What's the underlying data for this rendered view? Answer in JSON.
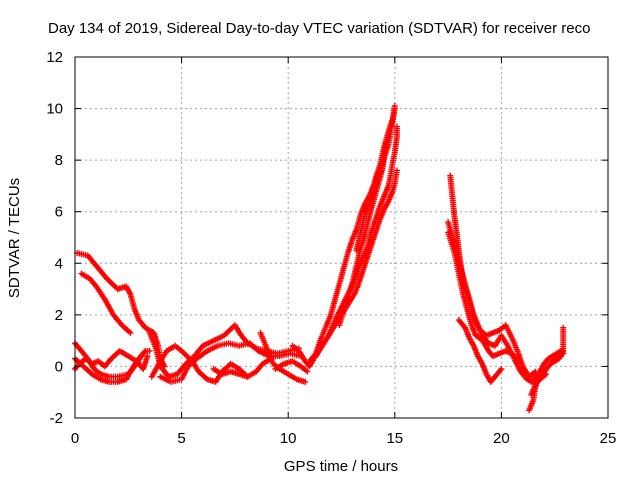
{
  "chart_data": {
    "type": "scatter",
    "title": "Day 134 of 2019, Sidereal Day-to-day VTEC variation (SDTVAR) for receiver reco",
    "xlabel": "GPS time / hours",
    "ylabel": "SDTVAR / TECUs",
    "xlim": [
      0,
      25
    ],
    "ylim": [
      -2,
      12
    ],
    "xticks": [
      0,
      5,
      10,
      15,
      20,
      25
    ],
    "yticks": [
      -2,
      0,
      2,
      4,
      6,
      8,
      10,
      12
    ],
    "grid": true,
    "marker": "+",
    "series_color": "#ff0000",
    "tracks": [
      [
        [
          0.1,
          4.4
        ],
        [
          0.6,
          4.3
        ],
        [
          1.0,
          3.9
        ],
        [
          1.5,
          3.4
        ],
        [
          2.0,
          3.0
        ],
        [
          2.4,
          3.1
        ],
        [
          2.6,
          2.8
        ],
        [
          2.8,
          2.2
        ],
        [
          3.0,
          1.8
        ],
        [
          3.3,
          1.5
        ],
        [
          3.5,
          1.4
        ],
        [
          3.7,
          1.3
        ],
        [
          3.9,
          0.8
        ],
        [
          4.0,
          0.3
        ],
        [
          4.2,
          0.0
        ]
      ],
      [
        [
          0.3,
          3.6
        ],
        [
          0.7,
          3.4
        ],
        [
          1.0,
          3.1
        ],
        [
          1.4,
          2.6
        ],
        [
          1.8,
          2.0
        ],
        [
          2.2,
          1.6
        ],
        [
          2.6,
          1.3
        ]
      ],
      [
        [
          0.0,
          0.9
        ],
        [
          0.3,
          0.6
        ],
        [
          0.6,
          0.3
        ],
        [
          0.9,
          -0.1
        ],
        [
          1.2,
          -0.3
        ],
        [
          1.6,
          -0.4
        ],
        [
          2.0,
          -0.4
        ],
        [
          2.5,
          -0.3
        ],
        [
          2.8,
          0.0
        ],
        [
          3.1,
          0.4
        ],
        [
          3.3,
          0.6
        ],
        [
          3.5,
          0.6
        ]
      ],
      [
        [
          0.0,
          0.3
        ],
        [
          0.4,
          0.0
        ],
        [
          0.8,
          -0.3
        ],
        [
          1.2,
          -0.5
        ],
        [
          1.6,
          -0.6
        ],
        [
          2.0,
          -0.6
        ],
        [
          2.4,
          -0.5
        ],
        [
          2.6,
          -0.2
        ],
        [
          2.9,
          0.2
        ],
        [
          3.2,
          0.5
        ]
      ],
      [
        [
          0.0,
          -0.1
        ],
        [
          0.2,
          0.1
        ],
        [
          0.5,
          0.3
        ],
        [
          0.8,
          0.1
        ],
        [
          1.1,
          0.2
        ],
        [
          1.4,
          0.0
        ],
        [
          1.7,
          0.3
        ],
        [
          2.1,
          0.6
        ],
        [
          2.5,
          0.4
        ],
        [
          2.9,
          0.2
        ],
        [
          3.2,
          -0.1
        ],
        [
          3.4,
          0.4
        ]
      ],
      [
        [
          3.5,
          1.3
        ],
        [
          3.8,
          0.7
        ],
        [
          4.0,
          0.0
        ],
        [
          4.4,
          -0.4
        ],
        [
          4.8,
          -0.3
        ],
        [
          5.2,
          0.1
        ],
        [
          5.6,
          0.4
        ],
        [
          6.0,
          0.8
        ],
        [
          6.5,
          1.0
        ],
        [
          7.0,
          1.2
        ],
        [
          7.5,
          1.6
        ],
        [
          7.8,
          1.2
        ],
        [
          8.1,
          0.9
        ],
        [
          8.5,
          0.7
        ],
        [
          9.0,
          0.6
        ],
        [
          9.5,
          0.5
        ],
        [
          10.0,
          0.6
        ],
        [
          10.5,
          0.7
        ]
      ],
      [
        [
          4.0,
          -0.4
        ],
        [
          4.5,
          -0.6
        ],
        [
          5.0,
          -0.5
        ],
        [
          5.3,
          0.0
        ],
        [
          5.7,
          0.3
        ],
        [
          6.2,
          0.6
        ],
        [
          6.7,
          0.8
        ],
        [
          7.2,
          0.9
        ],
        [
          7.7,
          0.8
        ],
        [
          8.2,
          0.9
        ],
        [
          8.6,
          0.6
        ],
        [
          9.1,
          0.4
        ],
        [
          9.6,
          0.4
        ],
        [
          10.1,
          0.5
        ],
        [
          10.6,
          0.4
        ]
      ],
      [
        [
          3.6,
          -0.4
        ],
        [
          4.0,
          0.2
        ],
        [
          4.3,
          0.6
        ],
        [
          4.7,
          0.8
        ],
        [
          5.0,
          0.6
        ],
        [
          5.5,
          0.2
        ],
        [
          5.8,
          -0.2
        ],
        [
          6.2,
          -0.5
        ],
        [
          6.6,
          -0.6
        ],
        [
          6.9,
          -0.2
        ],
        [
          7.3,
          0.1
        ],
        [
          7.7,
          -0.1
        ],
        [
          8.1,
          -0.4
        ],
        [
          8.5,
          -0.2
        ],
        [
          8.8,
          0.1
        ],
        [
          9.2,
          0.3
        ]
      ],
      [
        [
          6.5,
          -0.1
        ],
        [
          6.9,
          -0.3
        ],
        [
          7.3,
          -0.2
        ],
        [
          7.7,
          -0.3
        ],
        [
          8.1,
          -0.4
        ]
      ],
      [
        [
          8.7,
          1.3
        ],
        [
          9.0,
          0.7
        ],
        [
          9.3,
          0.1
        ],
        [
          9.6,
          -0.1
        ],
        [
          10.0,
          -0.3
        ],
        [
          10.4,
          -0.5
        ],
        [
          10.8,
          -0.6
        ]
      ],
      [
        [
          9.4,
          -0.1
        ],
        [
          9.8,
          0.1
        ],
        [
          10.2,
          0.2
        ],
        [
          10.6,
          0.0
        ],
        [
          10.9,
          -0.2
        ]
      ],
      [
        [
          10.2,
          0.8
        ],
        [
          10.5,
          0.6
        ],
        [
          10.8,
          0.2
        ],
        [
          11.0,
          0.0
        ],
        [
          11.2,
          0.3
        ],
        [
          11.4,
          0.6
        ],
        [
          11.6,
          0.9
        ]
      ],
      [
        [
          11.0,
          0.2
        ],
        [
          11.3,
          0.5
        ],
        [
          11.5,
          1.0
        ],
        [
          11.8,
          1.6
        ],
        [
          12.0,
          2.0
        ],
        [
          12.2,
          2.6
        ],
        [
          12.4,
          3.2
        ],
        [
          12.6,
          3.8
        ],
        [
          12.8,
          4.4
        ],
        [
          13.0,
          4.9
        ],
        [
          13.2,
          5.3
        ],
        [
          13.4,
          5.9
        ],
        [
          13.6,
          6.3
        ],
        [
          13.8,
          6.6
        ],
        [
          14.0,
          7.0
        ],
        [
          14.2,
          7.4
        ],
        [
          14.4,
          7.6
        ],
        [
          14.5,
          8.1
        ],
        [
          14.7,
          8.6
        ],
        [
          14.8,
          9.0
        ],
        [
          14.9,
          9.5
        ],
        [
          15.0,
          10.0
        ]
      ],
      [
        [
          11.3,
          0.4
        ],
        [
          11.6,
          0.8
        ],
        [
          11.9,
          1.2
        ],
        [
          12.2,
          1.8
        ],
        [
          12.5,
          2.3
        ],
        [
          12.8,
          2.8
        ],
        [
          13.1,
          3.3
        ],
        [
          13.4,
          4.0
        ],
        [
          13.7,
          4.6
        ],
        [
          13.9,
          5.2
        ],
        [
          14.1,
          5.7
        ],
        [
          14.3,
          6.2
        ],
        [
          14.5,
          6.6
        ],
        [
          14.7,
          7.0
        ],
        [
          14.8,
          7.4
        ],
        [
          14.9,
          7.9
        ],
        [
          15.0,
          8.3
        ],
        [
          15.1,
          8.9
        ],
        [
          15.1,
          9.3
        ]
      ],
      [
        [
          11.6,
          0.8
        ],
        [
          11.9,
          1.2
        ],
        [
          12.2,
          1.6
        ],
        [
          12.5,
          2.0
        ],
        [
          12.8,
          2.4
        ],
        [
          13.1,
          2.8
        ],
        [
          13.3,
          3.2
        ],
        [
          13.5,
          3.7
        ],
        [
          13.7,
          4.2
        ],
        [
          13.9,
          4.7
        ],
        [
          14.1,
          5.2
        ],
        [
          14.3,
          5.7
        ],
        [
          14.5,
          6.1
        ],
        [
          14.7,
          6.4
        ],
        [
          14.9,
          6.8
        ],
        [
          15.0,
          7.1
        ],
        [
          15.1,
          7.6
        ]
      ],
      [
        [
          12.4,
          1.6
        ],
        [
          12.7,
          2.4
        ],
        [
          13.0,
          3.2
        ],
        [
          13.2,
          3.9
        ],
        [
          13.4,
          4.6
        ],
        [
          13.6,
          5.1
        ],
        [
          13.8,
          5.8
        ],
        [
          14.0,
          6.4
        ],
        [
          14.2,
          7.0
        ],
        [
          14.4,
          7.6
        ],
        [
          14.5,
          8.2
        ],
        [
          14.6,
          8.7
        ]
      ],
      [
        [
          13.2,
          4.5
        ],
        [
          13.4,
          5.2
        ],
        [
          13.6,
          5.9
        ],
        [
          13.9,
          6.5
        ],
        [
          14.1,
          7.3
        ],
        [
          14.3,
          7.8
        ],
        [
          14.5,
          8.5
        ],
        [
          14.7,
          9.1
        ],
        [
          14.9,
          9.6
        ],
        [
          15.0,
          10.1
        ]
      ],
      [
        [
          17.6,
          7.4
        ],
        [
          17.7,
          6.6
        ],
        [
          17.8,
          5.8
        ],
        [
          17.9,
          5.2
        ],
        [
          18.0,
          4.5
        ],
        [
          18.1,
          3.9
        ],
        [
          18.2,
          3.3
        ],
        [
          18.4,
          2.8
        ],
        [
          18.6,
          2.2
        ],
        [
          18.8,
          1.7
        ],
        [
          19.0,
          1.4
        ],
        [
          19.3,
          1.2
        ],
        [
          19.6,
          1.3
        ],
        [
          19.9,
          1.4
        ],
        [
          20.2,
          1.6
        ],
        [
          20.5,
          1.1
        ],
        [
          20.8,
          0.5
        ],
        [
          21.0,
          0.0
        ],
        [
          21.3,
          -0.4
        ],
        [
          21.6,
          -0.2
        ]
      ],
      [
        [
          17.5,
          5.6
        ],
        [
          17.7,
          5.0
        ],
        [
          17.9,
          4.4
        ],
        [
          18.1,
          3.8
        ],
        [
          18.3,
          3.2
        ],
        [
          18.5,
          2.6
        ],
        [
          18.7,
          2.0
        ],
        [
          18.9,
          1.6
        ],
        [
          19.1,
          1.2
        ],
        [
          19.4,
          0.9
        ],
        [
          19.7,
          0.8
        ],
        [
          20.0,
          1.2
        ],
        [
          20.3,
          0.8
        ],
        [
          20.6,
          0.3
        ],
        [
          20.9,
          -0.2
        ],
        [
          21.2,
          -0.5
        ],
        [
          21.5,
          -0.6
        ],
        [
          21.8,
          -0.4
        ]
      ],
      [
        [
          17.5,
          5.2
        ],
        [
          17.8,
          4.4
        ],
        [
          18.0,
          3.6
        ],
        [
          18.2,
          2.8
        ],
        [
          18.4,
          2.2
        ],
        [
          18.6,
          1.6
        ],
        [
          18.8,
          1.2
        ],
        [
          19.0,
          1.1
        ],
        [
          19.2,
          0.9
        ],
        [
          19.4,
          0.6
        ],
        [
          19.6,
          0.4
        ],
        [
          19.9,
          0.5
        ],
        [
          20.2,
          0.6
        ],
        [
          20.5,
          0.5
        ],
        [
          20.8,
          0.2
        ],
        [
          21.1,
          -0.3
        ],
        [
          21.4,
          -0.6
        ],
        [
          21.8,
          -0.5
        ],
        [
          22.1,
          -0.3
        ]
      ],
      [
        [
          18.0,
          1.8
        ],
        [
          18.3,
          1.5
        ],
        [
          18.5,
          1.1
        ],
        [
          18.7,
          0.8
        ],
        [
          18.9,
          0.4
        ],
        [
          19.1,
          0.1
        ],
        [
          19.3,
          -0.3
        ],
        [
          19.5,
          -0.6
        ],
        [
          19.7,
          -0.4
        ],
        [
          20.0,
          -0.1
        ]
      ],
      [
        [
          21.3,
          -1.7
        ],
        [
          21.5,
          -1.3
        ],
        [
          21.6,
          -0.8
        ],
        [
          21.8,
          -0.2
        ],
        [
          22.0,
          0.1
        ],
        [
          22.2,
          0.3
        ],
        [
          22.4,
          0.4
        ],
        [
          22.6,
          0.5
        ],
        [
          22.8,
          0.6
        ],
        [
          22.9,
          0.5
        ]
      ],
      [
        [
          21.5,
          -0.5
        ],
        [
          21.8,
          -0.3
        ],
        [
          22.0,
          -0.2
        ],
        [
          22.2,
          0.0
        ],
        [
          22.4,
          0.2
        ],
        [
          22.6,
          0.3
        ],
        [
          22.8,
          0.4
        ],
        [
          22.9,
          0.7
        ],
        [
          22.9,
          1.5
        ]
      ],
      [
        [
          21.4,
          -1.1
        ],
        [
          21.6,
          -0.7
        ],
        [
          21.9,
          -0.4
        ],
        [
          22.1,
          -0.1
        ],
        [
          22.3,
          0.1
        ],
        [
          22.5,
          0.2
        ],
        [
          22.7,
          0.3
        ],
        [
          22.9,
          0.6
        ]
      ]
    ]
  }
}
